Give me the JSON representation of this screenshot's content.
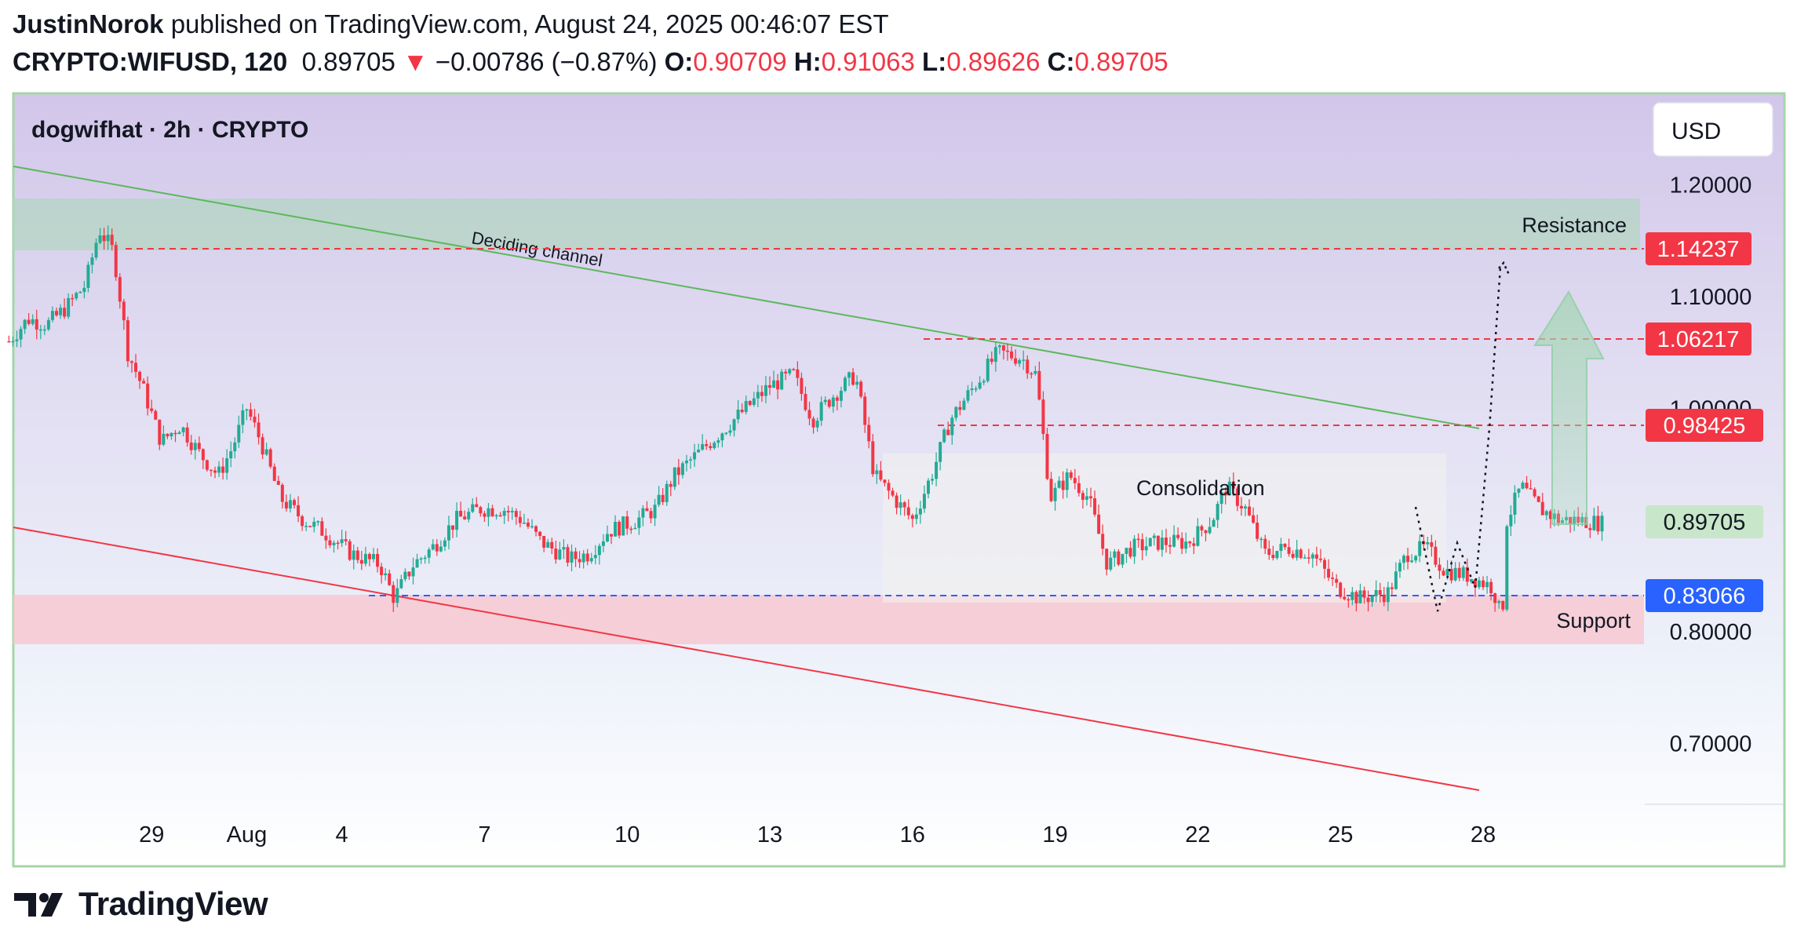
{
  "header": {
    "author": "JustinNorok",
    "published_text": "published on TradingView.com, August 24, 2025 00:46:07 EST",
    "symbol": "CRYPTO:WIFUSD, 120",
    "last": "0.89705",
    "change": "−0.00786 (−0.87%)",
    "o_label": "O:",
    "o": "0.90709",
    "h_label": "H:",
    "h": "0.91063",
    "l_label": "L:",
    "l": "0.89626",
    "c_label": "C:",
    "c": "0.89705"
  },
  "chart_title": "dogwifhat · 2h · CRYPTO",
  "currency_button": "USD",
  "colors": {
    "up": "#22ab94",
    "down": "#f23645",
    "resistance_zone": "#b9d7c9",
    "support_zone": "#f6c9cf",
    "channel_upper": "#5cb85c",
    "channel_lower": "#f23645",
    "frame": "#a5d6a7"
  },
  "annotations": {
    "resistance": "Resistance",
    "support": "Support",
    "consolidation": "Consolidation",
    "channel": "Deciding channel"
  },
  "price_labels": {
    "resistance_level": "1.14237",
    "level_2": "1.06217",
    "level_3": "0.98425",
    "last_price": "0.89705",
    "support_level": "0.83066"
  },
  "footer": {
    "brand": "TradingView"
  },
  "chart_data": {
    "type": "candlestick",
    "title": "dogwifhat · 2h · CRYPTO",
    "ylim": [
      0.64,
      1.26
    ],
    "y_ticks": [
      "1.20000",
      "1.10000",
      "1.00000",
      "0.80000",
      "0.70000"
    ],
    "x_ticks": [
      "29",
      "Aug",
      "4",
      "7",
      "10",
      "13",
      "16",
      "19",
      "22",
      "25",
      "28"
    ],
    "x_tick_days": [
      -3,
      -1,
      1,
      4,
      7,
      10,
      13,
      16,
      19,
      22,
      25
    ],
    "series": [
      {
        "values": [
          [
            -6.0,
            1.06
          ],
          [
            -5.6,
            1.08
          ],
          [
            -5.2,
            1.075
          ],
          [
            -4.8,
            1.09
          ],
          [
            -4.4,
            1.11
          ],
          [
            -4.1,
            1.16
          ],
          [
            -3.8,
            1.14
          ],
          [
            -3.5,
            1.05
          ],
          [
            -3.2,
            1.02
          ],
          [
            -2.8,
            0.97
          ],
          [
            -2.4,
            0.985
          ],
          [
            -2.0,
            0.96
          ],
          [
            -1.6,
            0.94
          ],
          [
            -1.3,
            0.965
          ],
          [
            -1.0,
            1.0
          ],
          [
            -0.7,
            0.97
          ],
          [
            -0.3,
            0.92
          ],
          [
            0.2,
            0.9
          ],
          [
            0.6,
            0.89
          ],
          [
            1.2,
            0.87
          ],
          [
            1.8,
            0.86
          ],
          [
            2.1,
            0.83
          ],
          [
            2.5,
            0.86
          ],
          [
            2.9,
            0.875
          ],
          [
            3.4,
            0.9
          ],
          [
            3.9,
            0.91
          ],
          [
            4.4,
            0.91
          ],
          [
            4.8,
            0.9
          ],
          [
            5.2,
            0.88
          ],
          [
            5.8,
            0.865
          ],
          [
            6.2,
            0.87
          ],
          [
            6.6,
            0.89
          ],
          [
            7.2,
            0.9
          ],
          [
            7.6,
            0.91
          ],
          [
            8.0,
            0.94
          ],
          [
            8.5,
            0.96
          ],
          [
            9.0,
            0.98
          ],
          [
            9.5,
            1.0
          ],
          [
            10.0,
            1.02
          ],
          [
            10.5,
            1.03
          ],
          [
            10.9,
            0.99
          ],
          [
            11.3,
            1.01
          ],
          [
            11.8,
            1.03
          ],
          [
            12.2,
            0.94
          ],
          [
            12.6,
            0.92
          ],
          [
            13.0,
            0.9
          ],
          [
            13.4,
            0.94
          ],
          [
            13.8,
            0.99
          ],
          [
            14.3,
            1.02
          ],
          [
            14.8,
            1.05
          ],
          [
            15.3,
            1.045
          ],
          [
            15.6,
            1.03
          ],
          [
            15.9,
            0.92
          ],
          [
            16.3,
            0.94
          ],
          [
            16.7,
            0.92
          ],
          [
            17.1,
            0.86
          ],
          [
            17.6,
            0.875
          ],
          [
            18.2,
            0.88
          ],
          [
            18.8,
            0.88
          ],
          [
            19.3,
            0.9
          ],
          [
            19.6,
            0.93
          ],
          [
            20.0,
            0.91
          ],
          [
            20.4,
            0.87
          ],
          [
            20.9,
            0.875
          ],
          [
            21.4,
            0.87
          ],
          [
            21.9,
            0.84
          ],
          [
            22.4,
            0.83
          ],
          [
            23.0,
            0.835
          ],
          [
            23.4,
            0.87
          ],
          [
            23.8,
            0.875
          ],
          [
            24.2,
            0.855
          ],
          [
            24.7,
            0.85
          ],
          [
            25.2,
            0.84
          ],
          [
            25.4,
            0.81
          ],
          [
            25.5,
            0.9
          ],
          [
            25.8,
            0.93
          ],
          [
            26.2,
            0.91
          ],
          [
            26.6,
            0.9
          ],
          [
            27.0,
            0.9
          ],
          [
            27.5,
            0.897
          ]
        ]
      }
    ],
    "levels": [
      1.14237,
      1.06217,
      0.98425,
      0.83066
    ],
    "last_price": 0.89705
  }
}
